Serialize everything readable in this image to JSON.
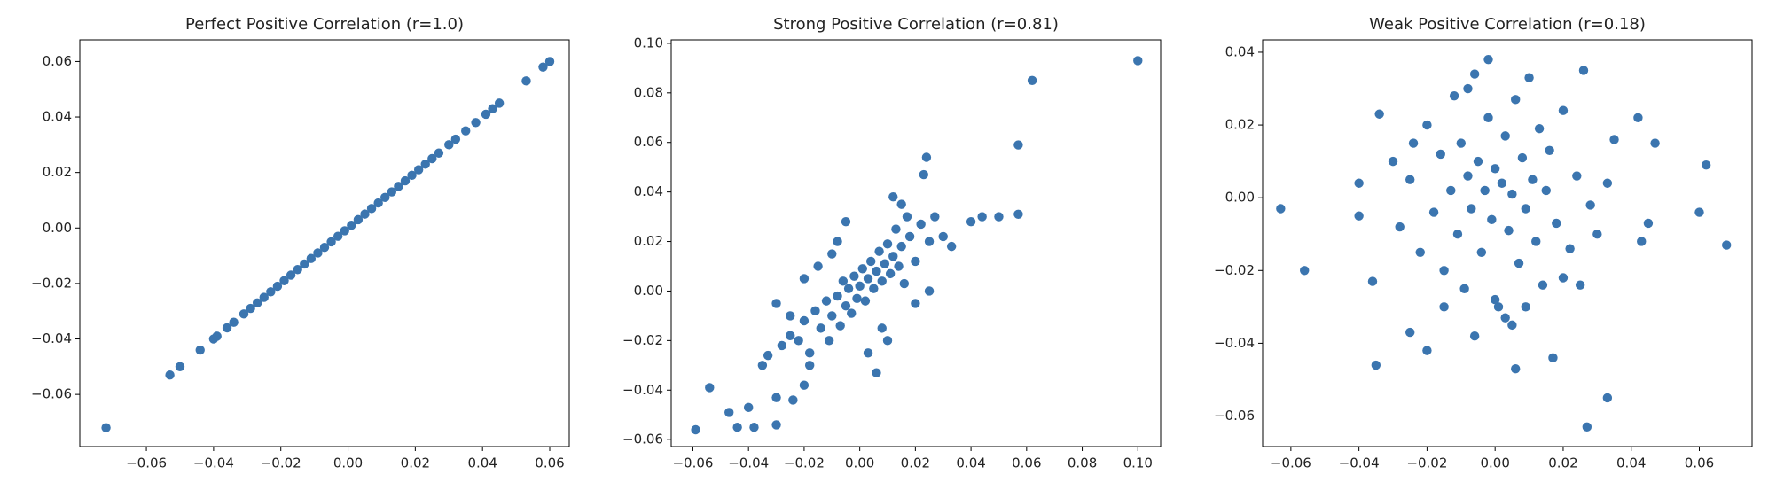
{
  "chart_data": [
    {
      "type": "scatter",
      "title": "Perfect Positive Correlation (r=1.0)",
      "color": "#3b75af",
      "xlim": [
        -0.0798,
        0.0658
      ],
      "ylim": [
        -0.0788,
        0.0678
      ],
      "xticks": [
        {
          "value": -0.06,
          "label": "−0.06"
        },
        {
          "value": -0.04,
          "label": "−0.04"
        },
        {
          "value": -0.02,
          "label": "−0.02"
        },
        {
          "value": 0,
          "label": "0.00"
        },
        {
          "value": 0.02,
          "label": "0.02"
        },
        {
          "value": 0.04,
          "label": "0.04"
        },
        {
          "value": 0.06,
          "label": "0.06"
        }
      ],
      "yticks": [
        {
          "value": -0.06,
          "label": "−0.06"
        },
        {
          "value": -0.04,
          "label": "−0.04"
        },
        {
          "value": -0.02,
          "label": "−0.02"
        },
        {
          "value": 0,
          "label": "0.00"
        },
        {
          "value": 0.02,
          "label": "0.02"
        },
        {
          "value": 0.04,
          "label": "0.04"
        },
        {
          "value": 0.06,
          "label": "0.06"
        }
      ],
      "x": [
        -0.072,
        -0.053,
        -0.05,
        -0.044,
        -0.04,
        -0.039,
        -0.036,
        -0.034,
        -0.031,
        -0.029,
        -0.027,
        -0.025,
        -0.023,
        -0.021,
        -0.019,
        -0.017,
        -0.015,
        -0.013,
        -0.011,
        -0.009,
        -0.007,
        -0.005,
        -0.003,
        -0.001,
        0.001,
        0.003,
        0.005,
        0.007,
        0.009,
        0.011,
        0.013,
        0.015,
        0.017,
        0.019,
        0.021,
        0.023,
        0.025,
        0.027,
        0.03,
        0.032,
        0.035,
        0.038,
        0.041,
        0.043,
        0.045,
        0.053,
        0.058,
        0.06
      ],
      "values": [
        -0.072,
        -0.053,
        -0.05,
        -0.044,
        -0.04,
        -0.039,
        -0.036,
        -0.034,
        -0.031,
        -0.029,
        -0.027,
        -0.025,
        -0.023,
        -0.021,
        -0.019,
        -0.017,
        -0.015,
        -0.013,
        -0.011,
        -0.009,
        -0.007,
        -0.005,
        -0.003,
        -0.001,
        0.001,
        0.003,
        0.005,
        0.007,
        0.009,
        0.011,
        0.013,
        0.015,
        0.017,
        0.019,
        0.021,
        0.023,
        0.025,
        0.027,
        0.03,
        0.032,
        0.035,
        0.038,
        0.041,
        0.043,
        0.045,
        0.053,
        0.058,
        0.06
      ]
    },
    {
      "type": "scatter",
      "title": "Strong Positive Correlation (r=0.81)",
      "color": "#3b75af",
      "xlim": [
        -0.0678,
        0.1082
      ],
      "ylim": [
        -0.0628,
        0.1014
      ],
      "xticks": [
        {
          "value": -0.06,
          "label": "−0.06"
        },
        {
          "value": -0.04,
          "label": "−0.04"
        },
        {
          "value": -0.02,
          "label": "−0.02"
        },
        {
          "value": 0,
          "label": "0.00"
        },
        {
          "value": 0.02,
          "label": "0.02"
        },
        {
          "value": 0.04,
          "label": "0.04"
        },
        {
          "value": 0.06,
          "label": "0.06"
        },
        {
          "value": 0.08,
          "label": "0.08"
        },
        {
          "value": 0.1,
          "label": "0.10"
        }
      ],
      "yticks": [
        {
          "value": -0.06,
          "label": "−0.06"
        },
        {
          "value": -0.04,
          "label": "−0.04"
        },
        {
          "value": -0.02,
          "label": "−0.02"
        },
        {
          "value": 0,
          "label": "0.00"
        },
        {
          "value": 0.02,
          "label": "0.02"
        },
        {
          "value": 0.04,
          "label": "0.04"
        },
        {
          "value": 0.06,
          "label": "0.06"
        },
        {
          "value": 0.08,
          "label": "0.08"
        },
        {
          "value": 0.1,
          "label": "0.10"
        }
      ],
      "x": [
        0.1,
        0.062,
        0.057,
        0.057,
        0.05,
        0.044,
        0.04,
        0.024,
        -0.059,
        -0.054,
        -0.047,
        -0.044,
        -0.04,
        -0.038,
        -0.03,
        -0.03,
        -0.024,
        -0.02,
        -0.03,
        0.023,
        -0.035,
        -0.033,
        -0.028,
        -0.025,
        -0.022,
        -0.02,
        -0.018,
        -0.016,
        -0.014,
        -0.012,
        -0.011,
        -0.01,
        -0.008,
        -0.007,
        -0.006,
        -0.005,
        -0.004,
        -0.003,
        -0.002,
        -0.001,
        0,
        0.001,
        0.002,
        0.003,
        0.004,
        0.005,
        0.006,
        0.007,
        0.008,
        0.009,
        0.01,
        0.011,
        0.012,
        0.013,
        0.014,
        0.015,
        0.016,
        0.018,
        0.02,
        0.022,
        0.025,
        0.027,
        0.03,
        0.033,
        0.008,
        0.01,
        0.006,
        -0.01,
        -0.015,
        -0.02,
        0.015,
        0.012,
        -0.005,
        0.02,
        0.025,
        -0.025,
        -0.018,
        0.003,
        0.017,
        -0.008
      ],
      "values": [
        0.093,
        0.085,
        0.059,
        0.031,
        0.03,
        0.03,
        0.028,
        0.054,
        -0.056,
        -0.039,
        -0.049,
        -0.055,
        -0.047,
        -0.055,
        -0.054,
        -0.043,
        -0.044,
        -0.038,
        -0.005,
        0.047,
        -0.03,
        -0.026,
        -0.022,
        -0.018,
        -0.02,
        -0.012,
        -0.025,
        -0.008,
        -0.015,
        -0.004,
        -0.02,
        -0.01,
        -0.002,
        -0.014,
        0.004,
        -0.006,
        0.001,
        -0.009,
        0.006,
        -0.003,
        0.002,
        0.009,
        -0.004,
        0.005,
        0.012,
        0.001,
        0.008,
        0.016,
        0.004,
        0.011,
        0.019,
        0.007,
        0.014,
        0.025,
        0.01,
        0.018,
        0.003,
        0.022,
        0.012,
        0.027,
        0.02,
        0.03,
        0.022,
        0.018,
        -0.015,
        -0.02,
        -0.033,
        0.015,
        0.01,
        0.005,
        0.035,
        0.038,
        0.028,
        -0.005,
        0,
        -0.01,
        -0.03,
        -0.025,
        0.03,
        0.02
      ]
    },
    {
      "type": "scatter",
      "title": "Weak Positive Correlation (r=0.18)",
      "color": "#3b75af",
      "xlim": [
        -0.0683,
        0.0755
      ],
      "ylim": [
        -0.0684,
        0.0434
      ],
      "xticks": [
        {
          "value": -0.06,
          "label": "−0.06"
        },
        {
          "value": -0.04,
          "label": "−0.04"
        },
        {
          "value": -0.02,
          "label": "−0.02"
        },
        {
          "value": 0,
          "label": "0.00"
        },
        {
          "value": 0.02,
          "label": "0.02"
        },
        {
          "value": 0.04,
          "label": "0.04"
        },
        {
          "value": 0.06,
          "label": "0.06"
        }
      ],
      "yticks": [
        {
          "value": -0.06,
          "label": "−0.06"
        },
        {
          "value": -0.04,
          "label": "−0.04"
        },
        {
          "value": -0.02,
          "label": "−0.02"
        },
        {
          "value": 0,
          "label": "0.00"
        },
        {
          "value": 0.02,
          "label": "0.02"
        },
        {
          "value": 0.04,
          "label": "0.04"
        }
      ],
      "x": [
        -0.063,
        -0.056,
        0.068,
        0.062,
        0.06,
        0.047,
        0.045,
        0.043,
        0.042,
        0.033,
        0.027,
        0.017,
        0.006,
        -0.035,
        -0.034,
        -0.04,
        -0.04,
        -0.036,
        -0.025,
        -0.02,
        -0.03,
        -0.028,
        -0.025,
        -0.022,
        -0.02,
        -0.018,
        -0.016,
        -0.015,
        -0.013,
        -0.012,
        -0.011,
        -0.01,
        -0.009,
        -0.008,
        -0.007,
        -0.006,
        -0.005,
        -0.004,
        -0.003,
        -0.002,
        -0.001,
        0,
        0.001,
        0.002,
        0.003,
        0.004,
        0.005,
        0.006,
        0.007,
        0.008,
        0.009,
        0.01,
        0.011,
        0.012,
        0.013,
        0.014,
        0.015,
        0.016,
        0.018,
        0.02,
        0.022,
        0.024,
        0.026,
        0.028,
        0.03,
        0.033,
        0.035,
        -0.002,
        0.005,
        -0.006,
        0,
        0.02,
        -0.024,
        -0.015,
        0.025,
        0.003,
        0.009,
        -0.008
      ],
      "values": [
        -0.003,
        -0.02,
        -0.013,
        0.009,
        -0.004,
        0.015,
        -0.007,
        -0.012,
        0.022,
        -0.055,
        -0.063,
        -0.044,
        -0.047,
        -0.046,
        0.023,
        0.004,
        -0.005,
        -0.023,
        -0.037,
        -0.042,
        0.01,
        -0.008,
        0.005,
        -0.015,
        0.02,
        -0.004,
        0.012,
        -0.02,
        0.002,
        0.028,
        -0.01,
        0.015,
        -0.025,
        0.006,
        -0.003,
        0.034,
        0.01,
        -0.015,
        0.002,
        0.022,
        -0.006,
        0.008,
        -0.03,
        0.004,
        0.017,
        -0.009,
        0.001,
        0.027,
        -0.018,
        0.011,
        -0.003,
        0.033,
        0.005,
        -0.012,
        0.019,
        -0.024,
        0.002,
        0.013,
        -0.007,
        0.024,
        -0.014,
        0.006,
        0.035,
        -0.002,
        -0.01,
        0.004,
        0.016,
        0.038,
        -0.035,
        -0.038,
        -0.028,
        -0.022,
        0.015,
        -0.03,
        -0.024,
        -0.033,
        -0.03,
        0.03
      ]
    }
  ]
}
